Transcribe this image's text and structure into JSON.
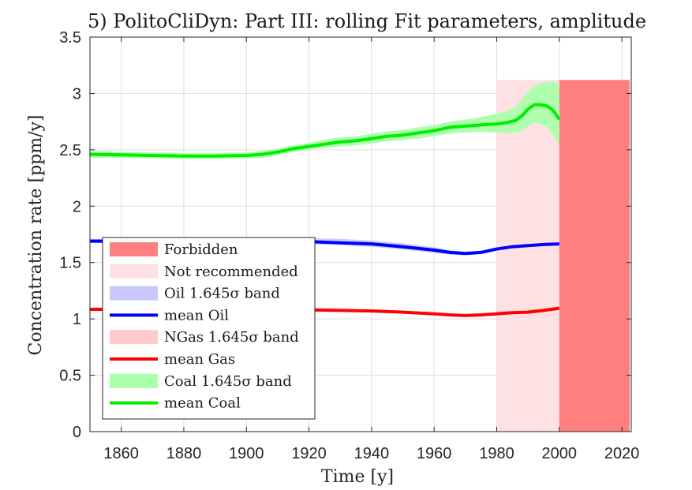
{
  "chart_data": {
    "type": "line",
    "title": "5) PolitoCliDyn: Part III: rolling Fit parameters, amplitude",
    "xlabel": "Time [y]",
    "ylabel": "Concentration rate [ppm/y]",
    "xlim": [
      1850,
      2023
    ],
    "ylim": [
      0,
      3.5
    ],
    "x_ticks": [
      1860,
      1880,
      1900,
      1920,
      1940,
      1960,
      1980,
      2000,
      2020
    ],
    "y_ticks": [
      "0",
      "0.5",
      "1",
      "1.5",
      "2",
      "2.5",
      "3",
      "3.5"
    ],
    "y_tick_values": [
      0,
      0.5,
      1,
      1.5,
      2,
      2.5,
      3,
      3.5
    ],
    "grid": true,
    "legend_position": "bottom-left",
    "regions": [
      {
        "name": "Forbidden",
        "x": [
          2000,
          2022.5
        ],
        "y": [
          0,
          3.12
        ],
        "color": "#ff7f7f"
      },
      {
        "name": "Not recommended",
        "x": [
          1980,
          2000
        ],
        "y": [
          0,
          3.12
        ],
        "color": "#ffe0e3"
      }
    ],
    "series": [
      {
        "name": "mean Coal",
        "band_name": "Coal 1.645σ band",
        "color": "#00ee00",
        "band_color": "#aaffaa",
        "x": [
          1850,
          1860,
          1870,
          1880,
          1890,
          1900,
          1905,
          1910,
          1915,
          1920,
          1925,
          1930,
          1935,
          1940,
          1945,
          1950,
          1955,
          1960,
          1965,
          1970,
          1975,
          1980,
          1983,
          1986,
          1988,
          1990,
          1992,
          1994,
          1996,
          1998,
          2000
        ],
        "values": [
          2.46,
          2.455,
          2.45,
          2.445,
          2.445,
          2.45,
          2.46,
          2.48,
          2.51,
          2.53,
          2.55,
          2.57,
          2.58,
          2.6,
          2.62,
          2.63,
          2.65,
          2.67,
          2.7,
          2.71,
          2.72,
          2.73,
          2.74,
          2.76,
          2.8,
          2.86,
          2.9,
          2.9,
          2.89,
          2.85,
          2.77
        ],
        "band_upper": [
          2.49,
          2.48,
          2.475,
          2.47,
          2.47,
          2.475,
          2.49,
          2.51,
          2.54,
          2.56,
          2.59,
          2.61,
          2.62,
          2.645,
          2.665,
          2.675,
          2.7,
          2.72,
          2.75,
          2.77,
          2.79,
          2.82,
          2.84,
          2.88,
          2.95,
          3.02,
          3.07,
          3.09,
          3.1,
          3.11,
          3.07
        ],
        "band_lower": [
          2.43,
          2.43,
          2.425,
          2.42,
          2.42,
          2.425,
          2.43,
          2.45,
          2.48,
          2.5,
          2.52,
          2.53,
          2.54,
          2.555,
          2.575,
          2.585,
          2.6,
          2.62,
          2.645,
          2.655,
          2.66,
          2.655,
          2.65,
          2.65,
          2.67,
          2.71,
          2.74,
          2.73,
          2.7,
          2.64,
          2.53
        ]
      },
      {
        "name": "mean Oil",
        "band_name": "Oil 1.645σ band",
        "color": "#0000ff",
        "band_color": "#c8c8ff",
        "x": [
          1850,
          1860,
          1870,
          1880,
          1890,
          1900,
          1910,
          1920,
          1930,
          1940,
          1950,
          1960,
          1965,
          1970,
          1975,
          1980,
          1985,
          1990,
          1995,
          2000
        ],
        "values": [
          1.69,
          1.69,
          1.69,
          1.69,
          1.69,
          1.69,
          1.69,
          1.685,
          1.675,
          1.665,
          1.64,
          1.61,
          1.59,
          1.58,
          1.59,
          1.62,
          1.64,
          1.65,
          1.66,
          1.665
        ],
        "band_upper": [
          1.71,
          1.71,
          1.71,
          1.71,
          1.71,
          1.715,
          1.715,
          1.715,
          1.71,
          1.695,
          1.67,
          1.635,
          1.61,
          1.595,
          1.605,
          1.63,
          1.65,
          1.66,
          1.67,
          1.675
        ],
        "band_lower": [
          1.675,
          1.675,
          1.675,
          1.675,
          1.675,
          1.675,
          1.67,
          1.665,
          1.655,
          1.64,
          1.615,
          1.585,
          1.57,
          1.565,
          1.575,
          1.61,
          1.63,
          1.64,
          1.65,
          1.655
        ]
      },
      {
        "name": "mean Gas",
        "band_name": "NGas 1.645σ band",
        "color": "#ff0000",
        "band_color": "#ffcccc",
        "x": [
          1850,
          1860,
          1870,
          1880,
          1890,
          1900,
          1910,
          1920,
          1930,
          1940,
          1950,
          1960,
          1965,
          1970,
          1975,
          1980,
          1985,
          1990,
          1995,
          2000
        ],
        "values": [
          1.085,
          1.085,
          1.085,
          1.085,
          1.085,
          1.085,
          1.085,
          1.08,
          1.075,
          1.07,
          1.06,
          1.045,
          1.035,
          1.03,
          1.035,
          1.045,
          1.055,
          1.06,
          1.075,
          1.095
        ],
        "band_upper": [
          1.09,
          1.09,
          1.09,
          1.09,
          1.09,
          1.09,
          1.09,
          1.085,
          1.08,
          1.075,
          1.065,
          1.05,
          1.04,
          1.035,
          1.04,
          1.05,
          1.06,
          1.066,
          1.081,
          1.101
        ],
        "band_lower": [
          1.08,
          1.08,
          1.08,
          1.08,
          1.08,
          1.08,
          1.08,
          1.075,
          1.07,
          1.065,
          1.055,
          1.04,
          1.03,
          1.025,
          1.03,
          1.04,
          1.05,
          1.054,
          1.069,
          1.089
        ]
      }
    ],
    "legend": [
      {
        "label": "Forbidden",
        "kind": "patch",
        "color": "#ff7f7f"
      },
      {
        "label": "Not recommended",
        "kind": "patch",
        "color": "#ffe0e3"
      },
      {
        "label": "Oil 1.645σ band",
        "kind": "patch",
        "color": "#c8c8ff"
      },
      {
        "label": "mean Oil",
        "kind": "line",
        "color": "#0000ff"
      },
      {
        "label": "NGas 1.645σ band",
        "kind": "patch",
        "color": "#ffcccc"
      },
      {
        "label": "mean Gas",
        "kind": "line",
        "color": "#ff0000"
      },
      {
        "label": "Coal 1.645σ band",
        "kind": "patch",
        "color": "#aaffaa"
      },
      {
        "label": "mean Coal",
        "kind": "line",
        "color": "#00ee00"
      }
    ]
  }
}
